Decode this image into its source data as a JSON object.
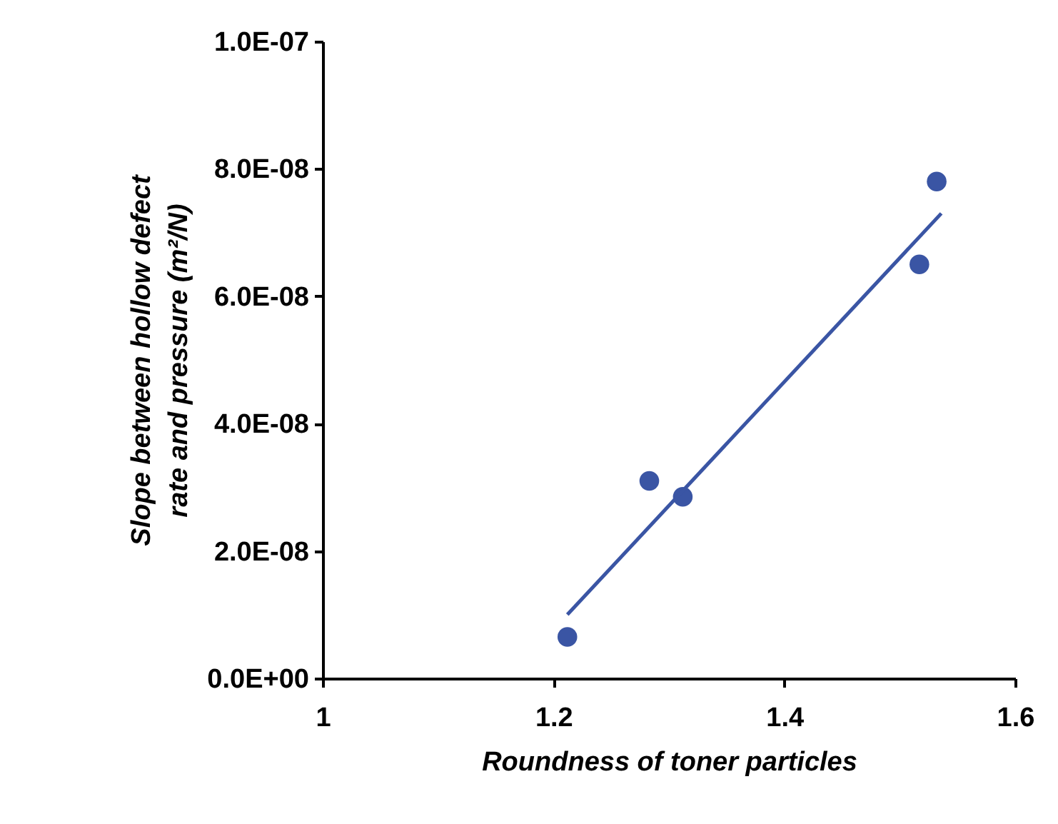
{
  "chart_data": {
    "type": "scatter",
    "xlabel": "Roundness of toner particles",
    "ylabel": "Slope between hollow defect\nrate and pressure    (m²/N)",
    "series": [
      {
        "color": "#3a55a4",
        "marker": "circle",
        "x": [
          1.212,
          1.283,
          1.312,
          1.517,
          1.532
        ],
        "values": [
          6.5e-09,
          3.1e-08,
          2.85e-08,
          6.5e-08,
          7.8e-08
        ]
      },
      {
        "type": "line",
        "color": "#3a55a4",
        "x": [
          1.212,
          1.536
        ],
        "values": [
          1e-08,
          7.3e-08
        ]
      }
    ],
    "xlim": [
      1,
      1.6
    ],
    "xticks": [
      1,
      1.2,
      1.4,
      1.6
    ],
    "ylim": [
      0,
      1e-07
    ],
    "yticks": [
      {
        "value": 0,
        "label": "0.0E+00"
      },
      {
        "value": 2e-08,
        "label": "2.0E-08"
      },
      {
        "value": 4e-08,
        "label": "4.0E-08"
      },
      {
        "value": 6e-08,
        "label": "6.0E-08"
      },
      {
        "value": 8e-08,
        "label": "8.0E-08"
      },
      {
        "value": 1e-07,
        "label": "1.0E-07"
      }
    ],
    "grid": false
  }
}
